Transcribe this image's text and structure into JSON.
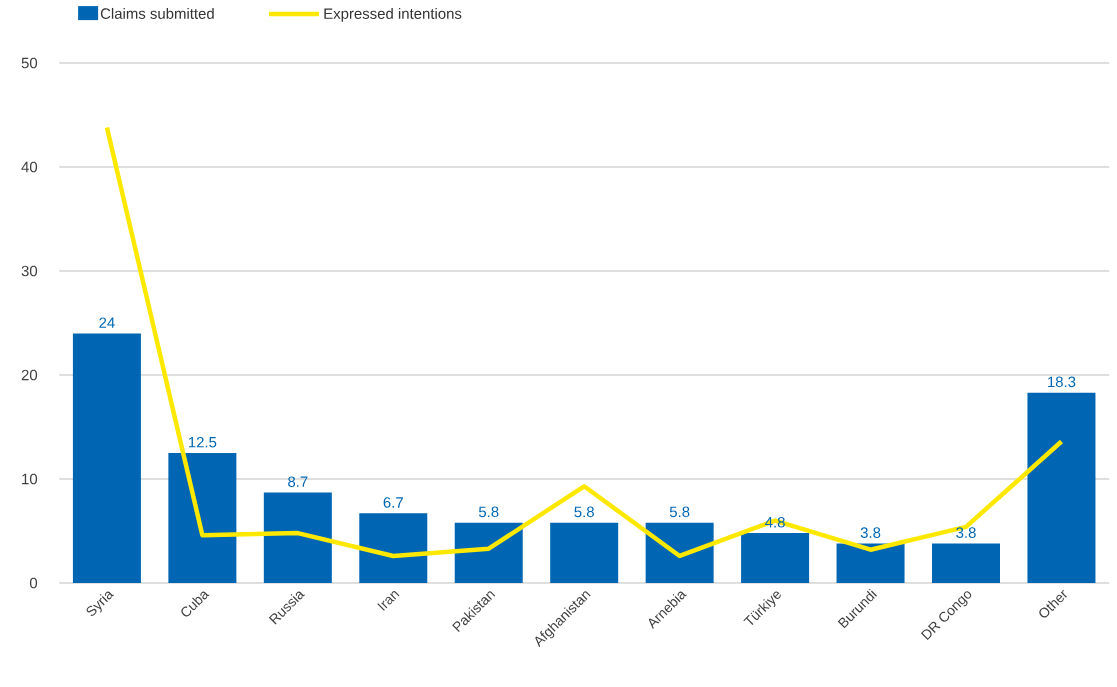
{
  "chart_data": {
    "type": "bar",
    "categories": [
      "Syria",
      "Cuba",
      "Russia",
      "Iran",
      "Pakistan",
      "Afghanistan",
      "Arnebia",
      "Türkiye",
      "Burundi",
      "DR Congo",
      "Other"
    ],
    "series": [
      {
        "name": "Claims submitted",
        "color": "#0066b3",
        "values": [
          24,
          12.5,
          8.7,
          6.7,
          5.8,
          5.8,
          5.8,
          4.8,
          3.8,
          3.8,
          18.3
        ],
        "value_labels": [
          "24",
          "12.5",
          "8.7",
          "6.7",
          "5.8",
          "5.8",
          "5.8",
          "4.8",
          "3.8",
          "3.8",
          "18.3"
        ]
      },
      {
        "name": "Expressed intentions",
        "type": "line",
        "color": "#ffe800",
        "values": [
          43.8,
          4.6,
          4.8,
          2.6,
          3.3,
          9.3,
          2.6,
          6.0,
          3.2,
          5.4,
          13.6
        ]
      }
    ],
    "ylim": [
      0,
      50
    ],
    "yticks": [
      0,
      10,
      20,
      30,
      40,
      50
    ],
    "grid": "y",
    "legend": "top left"
  }
}
